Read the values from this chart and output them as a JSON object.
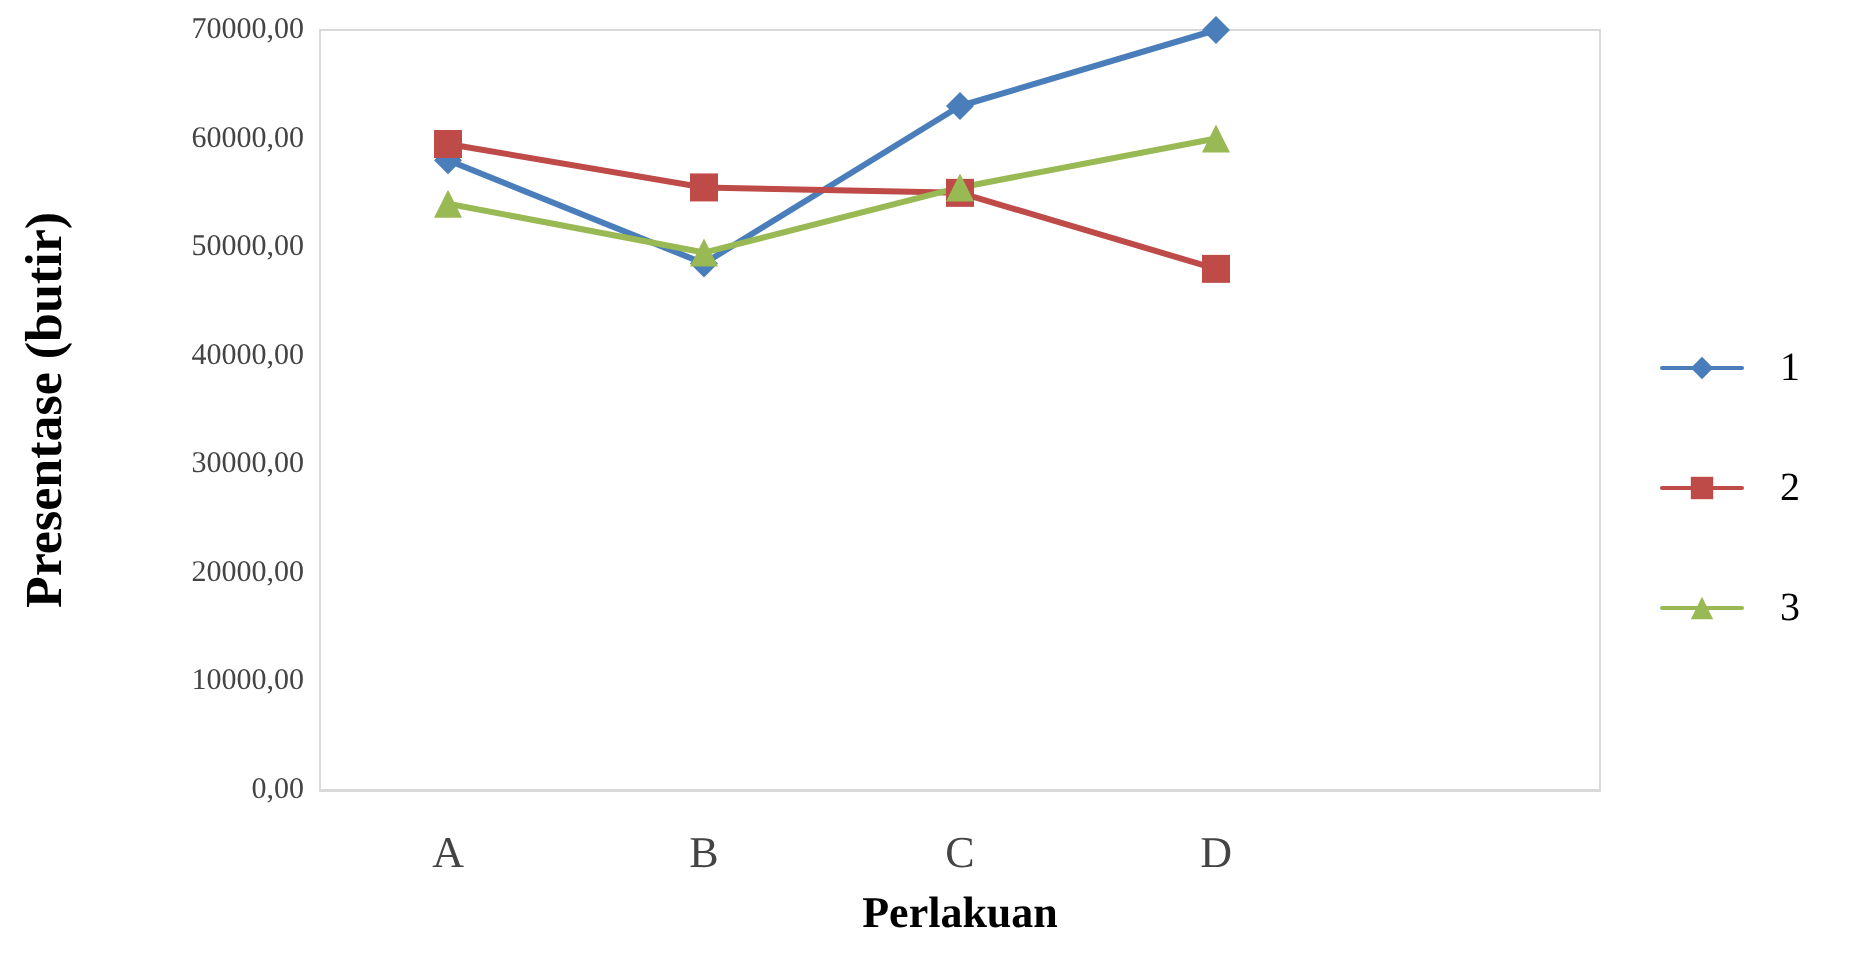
{
  "chart_data": {
    "type": "line",
    "xlabel": "Perlakuan",
    "ylabel": "Presentase (butir)",
    "categories": [
      "A",
      "B",
      "C",
      "D",
      null
    ],
    "series": [
      {
        "name": "1",
        "color": "#4a7ebb",
        "marker": "diamond",
        "values": [
          58000,
          48500,
          63000,
          70000,
          null
        ]
      },
      {
        "name": "2",
        "color": "#be4b48",
        "marker": "square",
        "values": [
          59500,
          55500,
          55000,
          48000,
          null
        ]
      },
      {
        "name": "3",
        "color": "#98b954",
        "marker": "triangle",
        "values": [
          54000,
          49500,
          55500,
          60000,
          null
        ]
      }
    ],
    "ylim": [
      0,
      70000
    ],
    "yticks": [
      {
        "value": 0,
        "label": "0,00"
      },
      {
        "value": 10000,
        "label": "10000,00"
      },
      {
        "value": 20000,
        "label": "20000,00"
      },
      {
        "value": 30000,
        "label": "30000,00"
      },
      {
        "value": 40000,
        "label": "40000,00"
      },
      {
        "value": 50000,
        "label": "50000,00"
      },
      {
        "value": 60000,
        "label": "60000,00"
      },
      {
        "value": 70000,
        "label": "70000,00"
      }
    ],
    "grid": false,
    "legend": "right"
  }
}
